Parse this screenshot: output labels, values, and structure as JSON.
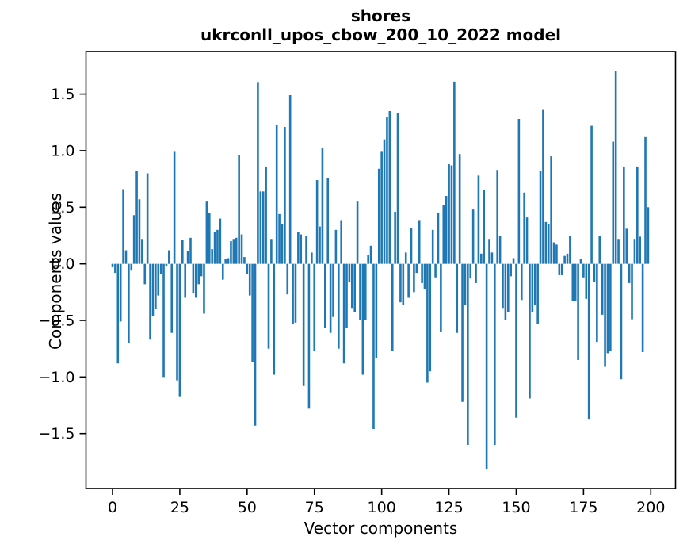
{
  "title": {
    "line1": "shores",
    "line2": "ukrconll_upos_cbow_200_10_2022 model"
  },
  "axes": {
    "xlabel": "Vector components",
    "ylabel": "Components values"
  },
  "chart_data": {
    "type": "bar",
    "title": "shores\nukrconll_upos_cbow_200_10_2022 model",
    "xlabel": "Vector components",
    "ylabel": "Components values",
    "bar_color": "#1f77b4",
    "axis_color": "#000000",
    "background_color": "#ffffff",
    "x_start": 0,
    "x_step": 1,
    "n_bars": 200,
    "xlim": [
      -10,
      210
    ],
    "ylim": [
      -1.99,
      1.88
    ],
    "grid": false,
    "legend": "none",
    "xticks": [
      0,
      25,
      50,
      75,
      100,
      125,
      150,
      175,
      200
    ],
    "yticks": [
      -1.5,
      -1.0,
      -0.5,
      0.0,
      0.5,
      1.0,
      1.5
    ],
    "ytick_labels": [
      "−1.5",
      "−1.0",
      "−0.5",
      "0.0",
      "0.5",
      "1.0",
      "1.5"
    ],
    "values": [
      -0.03,
      -0.08,
      -0.88,
      -0.51,
      0.66,
      0.12,
      -0.7,
      -0.06,
      0.43,
      0.82,
      0.57,
      0.22,
      -0.18,
      0.8,
      -0.67,
      -0.46,
      -0.4,
      -0.28,
      -0.09,
      -1.0,
      -0.02,
      0.12,
      -0.61,
      0.99,
      -1.03,
      -1.17,
      0.21,
      -0.3,
      0.11,
      0.23,
      -0.26,
      -0.3,
      -0.18,
      -0.11,
      -0.44,
      0.55,
      0.45,
      0.13,
      0.28,
      0.3,
      0.4,
      -0.14,
      0.04,
      0.05,
      0.2,
      0.22,
      0.23,
      0.96,
      0.26,
      0.06,
      -0.09,
      -0.28,
      -0.87,
      -1.43,
      1.6,
      0.64,
      0.64,
      0.86,
      -0.75,
      0.22,
      -0.98,
      1.23,
      0.44,
      0.35,
      1.21,
      -0.27,
      1.49,
      -0.53,
      -0.52,
      0.28,
      0.26,
      -1.08,
      0.25,
      -1.28,
      0.1,
      -0.77,
      0.74,
      0.33,
      1.02,
      -0.57,
      0.76,
      -0.61,
      -0.47,
      0.3,
      -0.75,
      0.38,
      -0.88,
      -0.57,
      -0.16,
      -0.39,
      -0.43,
      0.55,
      -0.5,
      -0.98,
      -0.5,
      0.08,
      0.16,
      -1.46,
      -0.83,
      0.84,
      0.99,
      1.1,
      1.3,
      1.35,
      -0.77,
      0.46,
      1.33,
      -0.34,
      -0.36,
      0.1,
      -0.3,
      0.32,
      -0.25,
      -0.08,
      0.38,
      -0.17,
      -0.22,
      -1.05,
      -0.95,
      0.3,
      -0.12,
      0.45,
      -0.6,
      0.52,
      0.6,
      0.88,
      0.87,
      1.61,
      -0.61,
      0.97,
      -1.22,
      -0.36,
      -1.6,
      -0.13,
      0.48,
      -0.17,
      0.78,
      0.09,
      0.65,
      -1.81,
      0.22,
      0.1,
      -1.6,
      0.83,
      0.25,
      -0.39,
      -0.5,
      -0.43,
      -0.11,
      0.05,
      -1.36,
      1.28,
      -0.32,
      0.63,
      0.41,
      -1.19,
      -0.43,
      -0.36,
      -0.53,
      0.82,
      1.36,
      0.37,
      0.35,
      0.95,
      0.19,
      0.17,
      -0.1,
      -0.1,
      0.07,
      0.09,
      0.25,
      -0.33,
      -0.33,
      -0.85,
      0.04,
      -0.12,
      -0.31,
      -1.37,
      1.22,
      -0.16,
      -0.69,
      0.25,
      -0.45,
      -0.91,
      -0.79,
      -0.77,
      1.08,
      1.7,
      0.22,
      -1.02,
      0.86,
      0.31,
      -0.17,
      -0.49,
      0.22,
      0.86,
      0.24,
      -0.78,
      1.12,
      0.5
    ]
  }
}
